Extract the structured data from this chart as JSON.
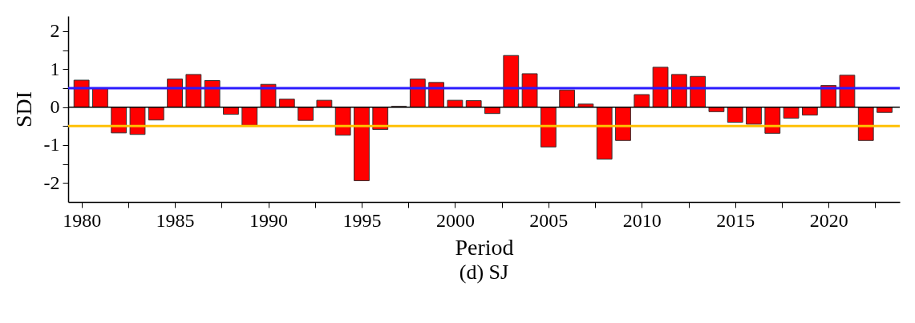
{
  "chart_data": {
    "type": "bar",
    "title": "(d) SJ",
    "xlabel": "Period",
    "ylabel": "SDI",
    "x": [
      1980,
      1981,
      1982,
      1983,
      1984,
      1985,
      1986,
      1987,
      1988,
      1989,
      1990,
      1991,
      1992,
      1993,
      1994,
      1995,
      1996,
      1997,
      1998,
      1999,
      2000,
      2001,
      2002,
      2003,
      2004,
      2005,
      2006,
      2007,
      2008,
      2009,
      2010,
      2011,
      2012,
      2013,
      2014,
      2015,
      2016,
      2017,
      2018,
      2019,
      2020,
      2021,
      2022,
      2023
    ],
    "values": [
      0.71,
      0.49,
      -0.68,
      -0.72,
      -0.34,
      0.74,
      0.86,
      0.7,
      -0.19,
      -0.48,
      0.6,
      0.21,
      -0.35,
      0.18,
      -0.74,
      -1.94,
      -0.59,
      0.02,
      0.74,
      0.65,
      0.18,
      0.17,
      -0.17,
      1.36,
      0.88,
      -1.05,
      0.45,
      0.08,
      -1.37,
      -0.88,
      0.33,
      1.05,
      0.86,
      0.81,
      -0.12,
      -0.4,
      -0.45,
      -0.69,
      -0.29,
      -0.21,
      0.57,
      0.84,
      -0.88,
      -0.14
    ],
    "color": "#ff0000",
    "xlim": [
      1979.5,
      2023.6
    ],
    "xticks": [
      1980,
      {
        "value": 1982.5,
        "label": null
      },
      1985,
      {
        "value": 1987.5,
        "label": null
      },
      1990,
      {
        "value": 1992.5,
        "label": null
      },
      1995,
      {
        "value": 1997.5,
        "label": null
      },
      2000,
      {
        "value": 2002.5,
        "label": null
      },
      2005,
      {
        "value": 2007.5,
        "label": null
      },
      2010,
      {
        "value": 2012.5,
        "label": null
      },
      2015,
      {
        "value": 2017.5,
        "label": null
      },
      2020,
      {
        "value": 2022.5,
        "label": null
      }
    ],
    "ylim": [
      -2.5,
      2.4
    ],
    "yticks": [
      -2,
      {
        "value": -1.5,
        "label": null
      },
      -1,
      {
        "value": -0.5,
        "label": null
      },
      0,
      {
        "value": 0.5,
        "label": null
      },
      1,
      {
        "value": 1.5,
        "label": null
      },
      2
    ],
    "grid": false,
    "ref_lines": [
      {
        "axis": "y",
        "value": 0,
        "color": "#000000"
      },
      {
        "axis": "y",
        "value": 0.5,
        "color": "#2b1bff"
      },
      {
        "axis": "y",
        "value": -0.5,
        "color": "#ffc000"
      }
    ]
  }
}
